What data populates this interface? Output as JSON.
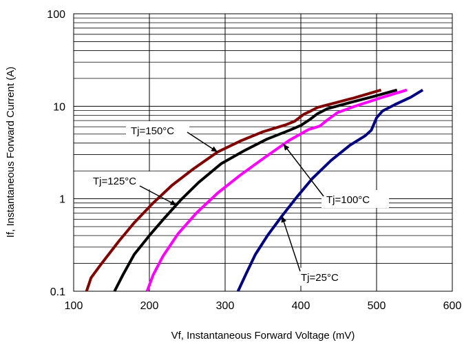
{
  "chart_data": {
    "type": "line",
    "xlabel": "Vf, Instantaneous Forward  Voltage (mV)",
    "ylabel": "If, Instantaneous Forward Current (A)",
    "xlim": [
      100,
      600
    ],
    "ylim": [
      0.1,
      100
    ],
    "yscale": "log",
    "grid": true,
    "x_ticks": [
      "100",
      "200",
      "300",
      "400",
      "500",
      "600"
    ],
    "y_ticks": [
      "0.1",
      "1",
      "10",
      "100"
    ],
    "series": [
      {
        "name": "Tj=150°C",
        "color": "#800000",
        "points": [
          [
            117,
            0.1
          ],
          [
            123,
            0.14
          ],
          [
            137,
            0.2
          ],
          [
            160,
            0.35
          ],
          [
            180,
            0.55
          ],
          [
            205,
            0.9
          ],
          [
            230,
            1.4
          ],
          [
            258,
            2.1
          ],
          [
            290,
            3.2
          ],
          [
            320,
            4.2
          ],
          [
            350,
            5.3
          ],
          [
            380,
            6.3
          ],
          [
            392,
            6.9
          ],
          [
            404,
            8.2
          ],
          [
            412,
            8.8
          ],
          [
            422,
            9.7
          ],
          [
            440,
            10.6
          ],
          [
            470,
            12.3
          ],
          [
            506,
            15
          ]
        ]
      },
      {
        "name": "Tj=125°C",
        "color": "#000000",
        "points": [
          [
            154,
            0.1
          ],
          [
            165,
            0.15
          ],
          [
            180,
            0.25
          ],
          [
            200,
            0.4
          ],
          [
            220,
            0.62
          ],
          [
            242,
            0.98
          ],
          [
            265,
            1.5
          ],
          [
            295,
            2.4
          ],
          [
            325,
            3.3
          ],
          [
            355,
            4.4
          ],
          [
            385,
            5.5
          ],
          [
            400,
            6.2
          ],
          [
            412,
            7.2
          ],
          [
            422,
            8.3
          ],
          [
            435,
            9.4
          ],
          [
            460,
            10.7
          ],
          [
            495,
            12.7
          ],
          [
            527,
            15
          ]
        ]
      },
      {
        "name": "Tj=100°C",
        "color": "#ff00ff",
        "points": [
          [
            197,
            0.1
          ],
          [
            205,
            0.15
          ],
          [
            218,
            0.24
          ],
          [
            238,
            0.42
          ],
          [
            262,
            0.7
          ],
          [
            290,
            1.15
          ],
          [
            320,
            1.8
          ],
          [
            355,
            2.9
          ],
          [
            385,
            4.3
          ],
          [
            410,
            5.6
          ],
          [
            425,
            6.1
          ],
          [
            435,
            7.1
          ],
          [
            448,
            8.5
          ],
          [
            470,
            9.9
          ],
          [
            505,
            12.3
          ],
          [
            540,
            15
          ]
        ]
      },
      {
        "name": "Tj=25°C",
        "color": "#000080",
        "points": [
          [
            317,
            0.1
          ],
          [
            327,
            0.15
          ],
          [
            340,
            0.25
          ],
          [
            356,
            0.4
          ],
          [
            375,
            0.65
          ],
          [
            395,
            1.05
          ],
          [
            415,
            1.65
          ],
          [
            440,
            2.6
          ],
          [
            465,
            3.8
          ],
          [
            485,
            4.8
          ],
          [
            493,
            5.5
          ],
          [
            500,
            7.5
          ],
          [
            508,
            8.9
          ],
          [
            525,
            10.5
          ],
          [
            545,
            12.5
          ],
          [
            561,
            15
          ]
        ]
      }
    ],
    "annotations": [
      {
        "text": "Tj=150°C",
        "series": "Tj=150°C",
        "points_to": [
          290,
          3.2
        ]
      },
      {
        "text": "Tj=125°C",
        "series": "Tj=125°C",
        "points_to": [
          236,
          0.85
        ]
      },
      {
        "text": "Tj=100°C",
        "series": "Tj=100°C",
        "points_to": [
          377,
          3.9
        ]
      },
      {
        "text": "Tj=25°C",
        "series": "Tj=25°C",
        "points_to": [
          375,
          0.65
        ]
      }
    ]
  }
}
